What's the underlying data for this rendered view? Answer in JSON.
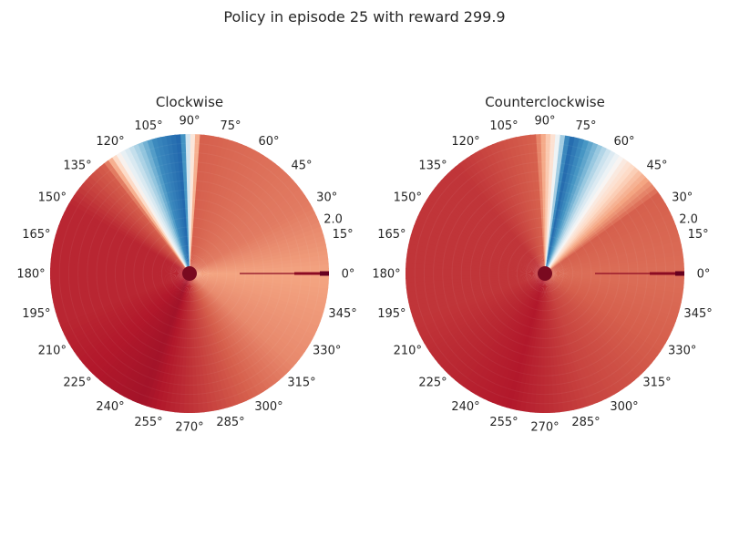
{
  "figure": {
    "title": "Policy in episode 25 with reward 299.9"
  },
  "chart_data": [
    {
      "type": "heatmap",
      "projection": "polar",
      "title": "Clockwise",
      "theta_tick_labels": [
        "0°",
        "15°",
        "30°",
        "45°",
        "60°",
        "75°",
        "90°",
        "105°",
        "120°",
        "135°",
        "150°",
        "165°",
        "180°",
        "195°",
        "210°",
        "225°",
        "240°",
        "255°",
        "270°",
        "285°",
        "300°",
        "315°",
        "330°",
        "345°"
      ],
      "radial_tick_labels": [
        "2.0"
      ],
      "rlim": [
        0,
        2.0
      ],
      "grid": false,
      "colormap": "RdBu",
      "angle_color_profile": [
        {
          "theta": 0,
          "value": 0.7
        },
        {
          "theta": 30,
          "value": 0.76
        },
        {
          "theta": 60,
          "value": 0.78
        },
        {
          "theta": 85,
          "value": 0.8
        },
        {
          "theta": 90,
          "value": 0.5
        },
        {
          "theta": 94,
          "value": 0.1
        },
        {
          "theta": 105,
          "value": 0.18
        },
        {
          "theta": 120,
          "value": 0.48
        },
        {
          "theta": 128,
          "value": 0.8
        },
        {
          "theta": 150,
          "value": 0.88
        },
        {
          "theta": 200,
          "value": 0.88
        },
        {
          "theta": 250,
          "value": 0.92
        },
        {
          "theta": 280,
          "value": 0.84
        },
        {
          "theta": 320,
          "value": 0.74
        },
        {
          "theta": 360,
          "value": 0.7
        }
      ]
    },
    {
      "type": "heatmap",
      "projection": "polar",
      "title": "Counterclockwise",
      "theta_tick_labels": [
        "0°",
        "15°",
        "30°",
        "45°",
        "60°",
        "75°",
        "90°",
        "105°",
        "120°",
        "135°",
        "150°",
        "165°",
        "180°",
        "195°",
        "210°",
        "225°",
        "240°",
        "255°",
        "270°",
        "285°",
        "300°",
        "315°",
        "330°",
        "345°"
      ],
      "radial_tick_labels": [
        "2.0"
      ],
      "rlim": [
        0,
        2.0
      ],
      "grid": false,
      "colormap": "RdBu",
      "angle_color_profile": [
        {
          "theta": 0,
          "value": 0.78
        },
        {
          "theta": 35,
          "value": 0.8
        },
        {
          "theta": 55,
          "value": 0.55
        },
        {
          "theta": 70,
          "value": 0.25
        },
        {
          "theta": 80,
          "value": 0.1
        },
        {
          "theta": 86,
          "value": 0.55
        },
        {
          "theta": 95,
          "value": 0.8
        },
        {
          "theta": 130,
          "value": 0.86
        },
        {
          "theta": 200,
          "value": 0.86
        },
        {
          "theta": 255,
          "value": 0.9
        },
        {
          "theta": 290,
          "value": 0.84
        },
        {
          "theta": 330,
          "value": 0.8
        },
        {
          "theta": 360,
          "value": 0.78
        }
      ]
    }
  ]
}
